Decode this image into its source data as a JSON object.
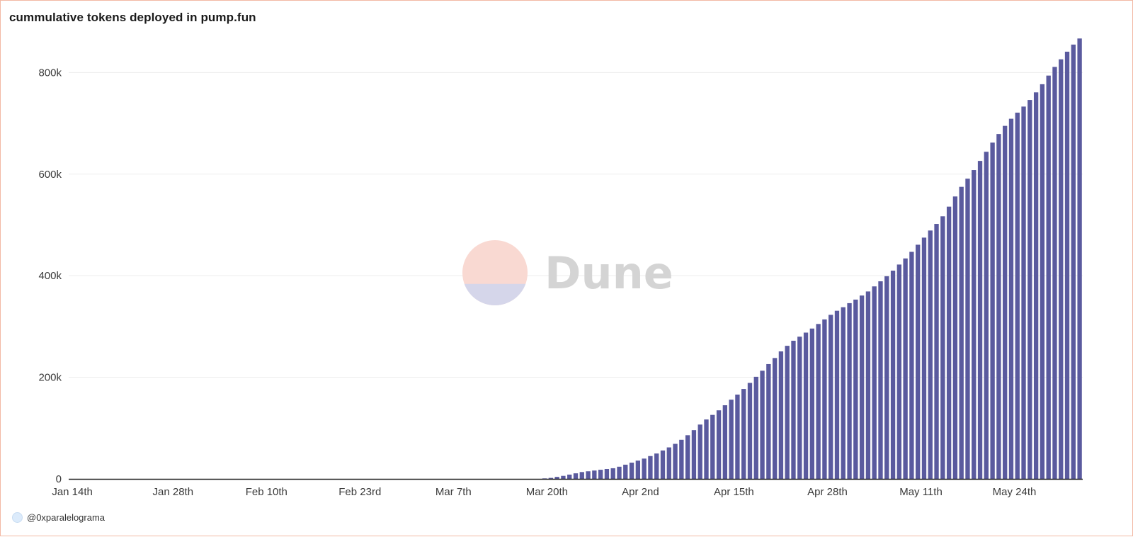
{
  "title": "cummulative tokens deployed in pump.fun",
  "author": "@0xparalelograma",
  "watermark": "Dune",
  "colors": {
    "bar": "#5a5a9e",
    "grid": "#ededed",
    "axis": "#222222",
    "watermark_top": "#f9d9d2",
    "watermark_bottom": "#d5d6ea"
  },
  "chart_data": {
    "type": "bar",
    "title": "cummulative tokens deployed in pump.fun",
    "x_start": "2024-01-14",
    "x_end": "2024-06-02",
    "x_tick_labels": [
      "Jan 14th",
      "Jan 28th",
      "Feb 10th",
      "Feb 23rd",
      "Mar 7th",
      "Mar 20th",
      "Apr 2nd",
      "Apr 15th",
      "Apr 28th",
      "May 11th",
      "May 24th"
    ],
    "y_tick_labels": [
      "0",
      "200k",
      "400k",
      "600k",
      "800k"
    ],
    "y_ticks": [
      0,
      200000,
      400000,
      600000,
      800000
    ],
    "ylim": [
      0,
      880000
    ],
    "grid": true,
    "series": [
      {
        "values": [
          0,
          0,
          0,
          0,
          0,
          0,
          0,
          0,
          0,
          0,
          0,
          0,
          0,
          0,
          0,
          0,
          0,
          0,
          0,
          0,
          0,
          0,
          0,
          0,
          0,
          0,
          0,
          0,
          0,
          0,
          0,
          0,
          0,
          0,
          0,
          0,
          0,
          0,
          0,
          0,
          0,
          0,
          0,
          0,
          0,
          0,
          0,
          0,
          0,
          0,
          0,
          0,
          0,
          0,
          0,
          0,
          0,
          0,
          0,
          0,
          0,
          0,
          0,
          0,
          0,
          0,
          0,
          0,
          0,
          0,
          0,
          0,
          0,
          0,
          0,
          0,
          1000,
          2000,
          4000,
          6000,
          8500,
          11000,
          13500,
          15000,
          16500,
          18000,
          19500,
          21000,
          24000,
          28000,
          32000,
          36000,
          40000,
          45000,
          50000,
          56000,
          62000,
          69000,
          77000,
          86000,
          96000,
          107000,
          117000,
          126000,
          135000,
          145000,
          156000,
          166000,
          177000,
          189000,
          201000,
          213000,
          226000,
          238000,
          251000,
          262000,
          272000,
          280000,
          288000,
          296000,
          305000,
          314000,
          323000,
          331000,
          338000,
          346000,
          353000,
          361000,
          369000,
          379000,
          389000,
          399000,
          410000,
          422000,
          434000,
          447000,
          461000,
          475000,
          489000,
          502000,
          517000,
          536000,
          556000,
          575000,
          591000,
          608000,
          626000,
          644000,
          662000,
          679000,
          695000,
          709000,
          721000,
          733000,
          746000,
          761000,
          777000,
          794000,
          811000,
          826000,
          841000,
          855000,
          867000
        ]
      }
    ]
  }
}
